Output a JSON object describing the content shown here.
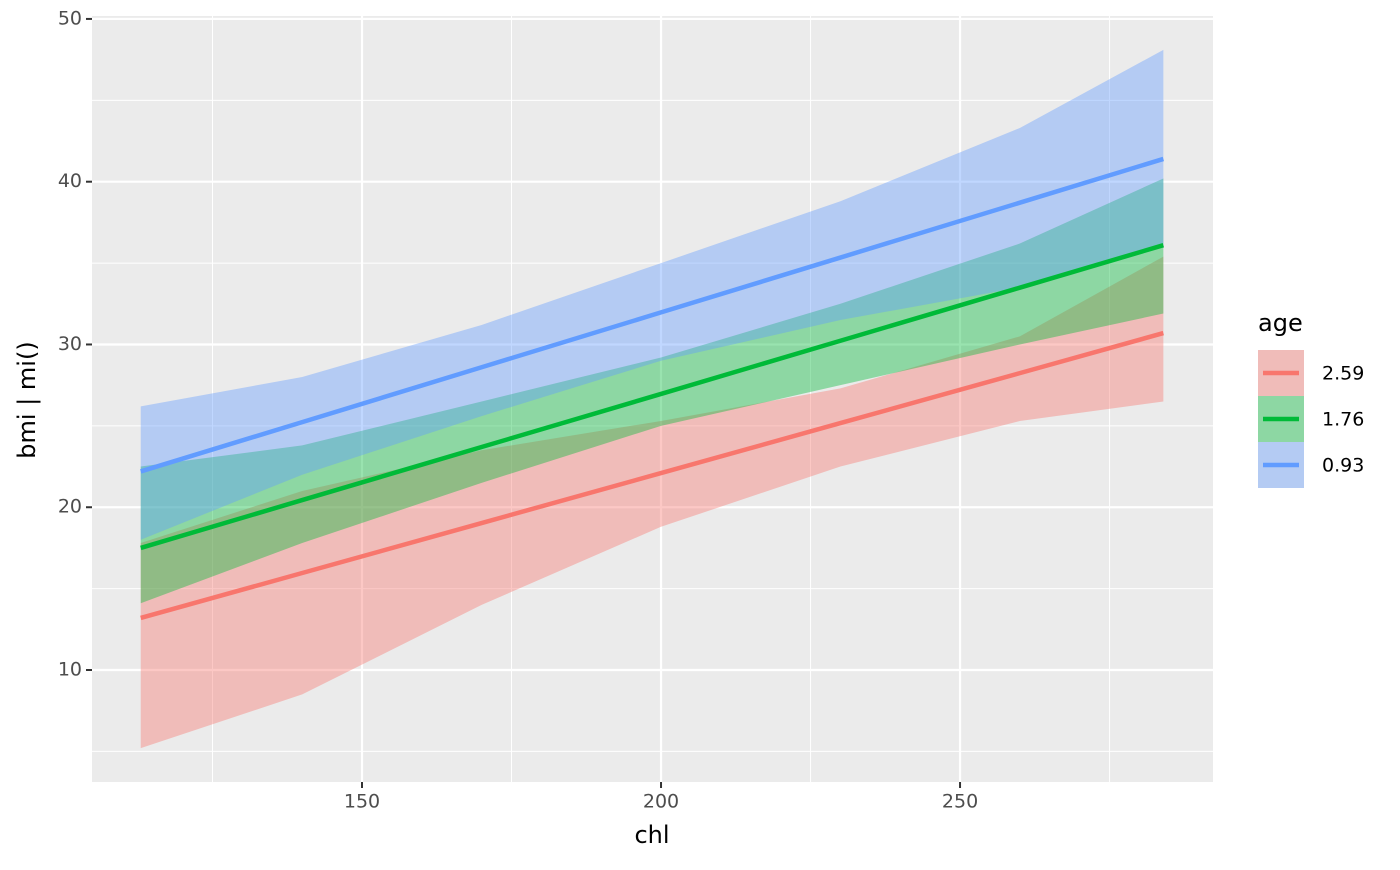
{
  "chart_data": {
    "type": "line",
    "x_label": "chl",
    "y_label": "bmi | mi()",
    "legend_title": "age",
    "legend_position": "right",
    "grid": true,
    "x": [
      113,
      140,
      170,
      200,
      230,
      260,
      284
    ],
    "xlim": [
      104.85,
      292.3
    ],
    "ylim": [
      3.12,
      50.18
    ],
    "xticks": [
      150,
      200,
      250
    ],
    "yticks": [
      10,
      20,
      30,
      40,
      50
    ],
    "xminorticks": [
      125,
      175,
      225,
      275
    ],
    "yminorticks": [
      5,
      15,
      25,
      35,
      45
    ],
    "series": [
      {
        "name": "2.59",
        "color": "#F8766D",
        "values": [
          13.2,
          15.96,
          19.03,
          22.1,
          25.17,
          28.24,
          30.7
        ],
        "lower": [
          5.2,
          8.5,
          14.0,
          18.8,
          22.5,
          25.3,
          26.5
        ],
        "upper": [
          17.8,
          21.0,
          23.5,
          25.3,
          27.3,
          30.5,
          35.4
        ]
      },
      {
        "name": "1.76",
        "color": "#00BA38",
        "values": [
          17.5,
          20.44,
          23.7,
          26.96,
          30.23,
          33.49,
          36.1
        ],
        "lower": [
          14.1,
          17.8,
          21.5,
          25.0,
          27.5,
          30.0,
          31.9
        ],
        "upper": [
          22.5,
          23.8,
          26.5,
          29.2,
          32.5,
          36.2,
          40.2
        ]
      },
      {
        "name": "0.93",
        "color": "#619CFF",
        "values": [
          22.2,
          25.23,
          28.6,
          31.97,
          35.34,
          38.71,
          41.4
        ],
        "lower": [
          18.0,
          22.0,
          25.6,
          29.0,
          31.5,
          33.5,
          36.0
        ],
        "upper": [
          26.2,
          28.0,
          31.2,
          35.0,
          38.8,
          43.3,
          48.1
        ]
      }
    ]
  }
}
